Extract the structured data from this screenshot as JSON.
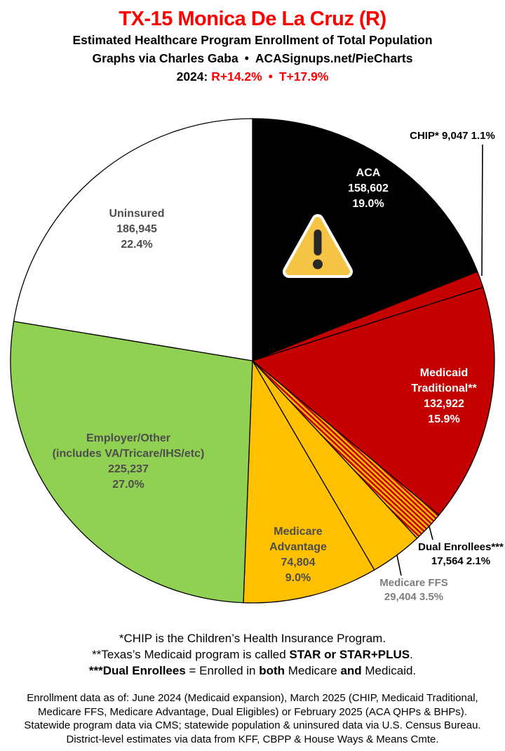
{
  "header": {
    "title": "TX-15 Monica De La Cruz (R)",
    "subtitle": "Estimated Healthcare Program Enrollment of Total Population",
    "credit_left": "Graphs via Charles Gaba",
    "credit_bullet": "•",
    "credit_right": "ACASignups.net/PieCharts",
    "year_label": "2024:",
    "r_margin": "R+14.2%",
    "margin_bullet": "•",
    "t_margin": "T+17.9%"
  },
  "colors": {
    "title_red": "#FF0000",
    "pie_stroke": "#000000",
    "warning_yellow": "#F6C444",
    "warning_glyph": "#282828"
  },
  "chart_data": {
    "type": "pie",
    "title": "Estimated Healthcare Program Enrollment of Total Population",
    "district": "TX-15",
    "representative": "Monica De La Cruz (R)",
    "start": "12 o'clock, clockwise",
    "total_pct": 100.0,
    "slices": [
      {
        "id": "aca",
        "name": "ACA",
        "value": 158602,
        "pct": 19.0,
        "color": "#000000",
        "label_lines": [
          "ACA",
          "158,602",
          "19.0%"
        ]
      },
      {
        "id": "chip",
        "name": "CHIP",
        "value": 9047,
        "pct": 1.1,
        "color": "#C40000",
        "outside_label": "CHIP* 9,047 1.1%"
      },
      {
        "id": "medicaid-traditional",
        "name": "Medicaid Traditional",
        "value": 132922,
        "pct": 15.9,
        "color": "#C40000",
        "label_lines": [
          "Medicaid",
          "Traditional**",
          "132,922",
          "15.9%"
        ]
      },
      {
        "id": "dual-enrollees",
        "name": "Dual Enrollees",
        "value": 17564,
        "pct": 2.1,
        "pattern": true,
        "stripe_red": "#C40000",
        "stripe_yellow": "#FFC000",
        "outside_label_lines": [
          "Dual Enrollees***",
          "17,564 2.1%"
        ]
      },
      {
        "id": "medicare-ffs",
        "name": "Medicare FFS",
        "value": 29404,
        "pct": 3.5,
        "color": "#FFC000",
        "outside_label_lines": [
          "Medicare FFS",
          "29,404 3.5%"
        ]
      },
      {
        "id": "medicare-advantage",
        "name": "Medicare Advantage",
        "value": 74804,
        "pct": 9.0,
        "color": "#FFC000",
        "label_lines": [
          "Medicare",
          "Advantage",
          "74,804",
          "9.0%"
        ]
      },
      {
        "id": "employer-other",
        "name": "Employer/Other",
        "value": 225237,
        "pct": 27.0,
        "color": "#90D052",
        "label_lines": [
          "Employer/Other",
          "(includes VA/Tricare/IHS/etc)",
          "225,237",
          "27.0%"
        ]
      },
      {
        "id": "uninsured",
        "name": "Uninsured",
        "value": 186945,
        "pct": 22.4,
        "color": "#FFFFFF",
        "label_lines": [
          "Uninsured",
          "186,945",
          "22.4%"
        ]
      }
    ]
  },
  "footnotes": [
    {
      "segments": [
        {
          "text": "*CHIP is the Children’s Health Insurance Program.",
          "bold": false
        }
      ]
    },
    {
      "segments": [
        {
          "text": "**Texas’s Medicaid program is called ",
          "bold": false
        },
        {
          "text": "STAR or STAR+PLUS",
          "bold": true
        },
        {
          "text": ".",
          "bold": false
        }
      ]
    },
    {
      "segments": [
        {
          "text": "***Dual Enrollees",
          "bold": true
        },
        {
          "text": " = Enrolled in ",
          "bold": false
        },
        {
          "text": "both",
          "bold": true
        },
        {
          "text": " Medicare ",
          "bold": false
        },
        {
          "text": "and",
          "bold": true
        },
        {
          "text": " Medicaid.",
          "bold": false
        }
      ]
    }
  ],
  "sources": [
    "Enrollment data as of: June 2024 (Medicaid expansion), March 2025 (CHIP, Medicaid Traditional,",
    "Medicare FFS, Medicare Advantage, Dual Eligibles) or February 2025 (ACA QHPs & BHPs).",
    "Statewide program data via CMS; statewide population & uninsured data via U.S. Census Bureau.",
    "District-level estimates via data from KFF, CBPP & House Ways & Means Cmte."
  ]
}
